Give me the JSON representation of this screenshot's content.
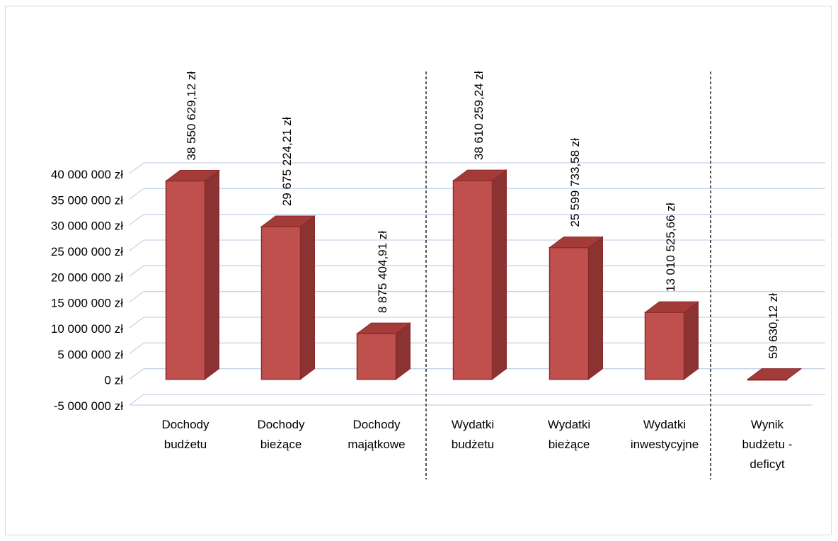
{
  "chart_data": {
    "type": "bar",
    "categories": [
      [
        "Dochody",
        "budżetu"
      ],
      [
        "Dochody",
        "bieżące"
      ],
      [
        "Dochody",
        "majątkowe"
      ],
      [
        "Wydatki",
        "budżetu"
      ],
      [
        "Wydatki",
        "bieżące"
      ],
      [
        "Wydatki",
        "inwestycyjne"
      ],
      [
        "Wynik",
        "budżetu -",
        "deficyt"
      ]
    ],
    "values": [
      38550629.12,
      29675224.21,
      8875404.91,
      38610259.24,
      25599733.58,
      13010525.66,
      -59630.12
    ],
    "value_labels": [
      "38 550 629,12 zł",
      "29 675 224,21 zł",
      "8 875 404,91 zł",
      "38 610 259,24 zł",
      "25 599 733,58 zł",
      "13 010 525,66 zł",
      "59 630,12 zł"
    ],
    "y_ticks": [
      "40 000 000 zł",
      "35 000 000 zł",
      "30 000 000 zł",
      "25 000 000 zł",
      "20 000 000 zł",
      "15 000 000 zł",
      "10 000 000 zł",
      "5 000 000 zł",
      "0 zł",
      "-5 000 000 zł"
    ],
    "ylim": [
      -5000000,
      40000000
    ],
    "grid": true,
    "bar_color": "#c0504d",
    "bar_side_color": "#8b3232",
    "bar_top_color": "#a33b39",
    "bar_edge_color": "#8c2a28",
    "grid_color": "#c6d4e6"
  }
}
